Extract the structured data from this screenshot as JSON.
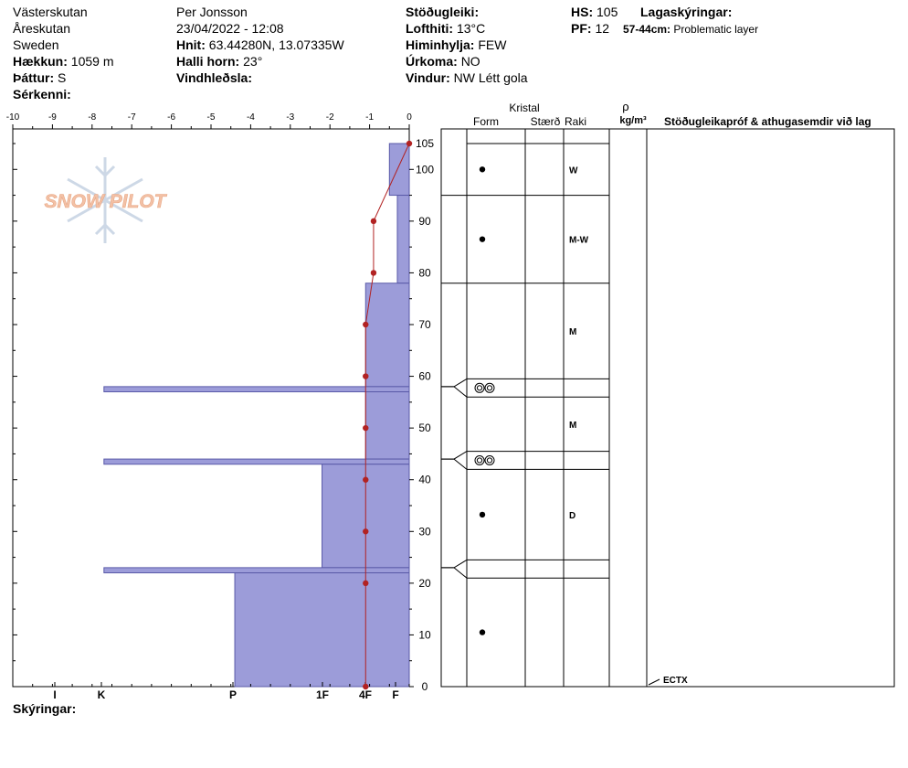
{
  "header": {
    "location": "Västerskutan",
    "area": "Åreskutan",
    "country": "Sweden",
    "elevation_label": "Hækkun:",
    "elevation_value": "1059 m",
    "aspect_label": "Þáttur:",
    "aspect_value": "S",
    "features_label": "Sérkenni:",
    "observer": "Per Jonsson",
    "datetime": "23/04/2022 - 12:08",
    "coords_label": "Hnit:",
    "coords_value": "63.44280N, 13.07335W",
    "slope_label": "Halli horn:",
    "slope_value": "23°",
    "wind_loading_label": "Vindhleðsla:",
    "stability_label": "Stöðugleiki:",
    "air_temp_label": "Lofthiti:",
    "air_temp_value": "13°C",
    "sky_label": "Himinhylja:",
    "sky_value": "FEW",
    "precip_label": "Úrkoma:",
    "precip_value": "NO",
    "wind_label": "Vindur:",
    "wind_value": "NW Létt gola",
    "hs_label": "HS:",
    "hs_value": "105",
    "pf_label": "PF:",
    "pf_value": "12",
    "layer_notes_label": "Lagaskýringar:",
    "layer_note_range": "57-44cm:",
    "layer_note_text": "Problematic layer",
    "comments_label": "Skýringar:"
  },
  "logo": {
    "text": "SNOW PILOT"
  },
  "columns": {
    "crystal": "Kristal",
    "form": "Form",
    "size": "Stærð",
    "moisture": "Raki",
    "rho": "ρ",
    "density_unit": "kg/m³",
    "tests": "Stöðugleikapróf & athugasemdir við lag"
  },
  "colors": {
    "hardness_fill": "#9c9cd9",
    "hardness_stroke": "#5a5aa8",
    "temperature": "#b22222"
  },
  "chart_data": {
    "type": "snow-profile",
    "temperature_axis": {
      "ticks": [
        "-10",
        "-9",
        "-8",
        "-7",
        "-6",
        "-5",
        "-4",
        "-3",
        "-2",
        "-1",
        "0"
      ],
      "range": [
        -10,
        0
      ]
    },
    "depth_axis": {
      "ticks": [
        "0",
        "10",
        "20",
        "30",
        "40",
        "50",
        "60",
        "70",
        "80",
        "90",
        "100",
        "105"
      ],
      "range": [
        0,
        105
      ],
      "unit": "cm"
    },
    "hardness_axis": {
      "labels": [
        "I",
        "K",
        "P",
        "1F",
        "4F",
        "F"
      ]
    },
    "temperature_profile": [
      {
        "depth": 0,
        "temp": -1.1
      },
      {
        "depth": 20,
        "temp": -1.1
      },
      {
        "depth": 30,
        "temp": -1.1
      },
      {
        "depth": 40,
        "temp": -1.1
      },
      {
        "depth": 50,
        "temp": -1.1
      },
      {
        "depth": 60,
        "temp": -1.1
      },
      {
        "depth": 70,
        "temp": -1.1
      },
      {
        "depth": 80,
        "temp": -0.9
      },
      {
        "depth": 90,
        "temp": -0.9
      },
      {
        "depth": 105,
        "temp": 0
      }
    ],
    "layers": [
      {
        "top": 105,
        "bottom": 95,
        "hardness": 0.5
      },
      {
        "top": 95,
        "bottom": 78,
        "hardness": 0.3
      },
      {
        "top": 78,
        "bottom": 58,
        "hardness": 1.1
      },
      {
        "top": 58,
        "bottom": 57,
        "hardness": 7.7
      },
      {
        "top": 57,
        "bottom": 44,
        "hardness": 1.1
      },
      {
        "top": 44,
        "bottom": 43,
        "hardness": 7.7
      },
      {
        "top": 43,
        "bottom": 23,
        "hardness": 2.2
      },
      {
        "top": 23,
        "bottom": 22,
        "hardness": 7.7
      },
      {
        "top": 22,
        "bottom": 0,
        "hardness": 4.4
      }
    ],
    "grain_rows": [
      {
        "top": 105,
        "bottom": 95,
        "form": "rounded-dot",
        "moisture": "W"
      },
      {
        "top": 95,
        "bottom": 78,
        "form": "rounded-dot",
        "moisture": "M-W"
      },
      {
        "top": 78,
        "bottom": 59.5,
        "form": "",
        "moisture": "M"
      },
      {
        "top": 59.5,
        "bottom": 56,
        "form": "melt-forms",
        "moisture": ""
      },
      {
        "top": 56,
        "bottom": 45.5,
        "form": "",
        "moisture": "M"
      },
      {
        "top": 45.5,
        "bottom": 42,
        "form": "melt-forms",
        "moisture": ""
      },
      {
        "top": 42,
        "bottom": 24.5,
        "form": "rounded-dot",
        "moisture": "D"
      },
      {
        "top": 24.5,
        "bottom": 21,
        "form": "",
        "moisture": ""
      },
      {
        "top": 21,
        "bottom": 0,
        "form": "rounded-dot",
        "moisture": ""
      }
    ],
    "tests": [
      {
        "depth": 0,
        "label": "ECTX"
      }
    ]
  }
}
